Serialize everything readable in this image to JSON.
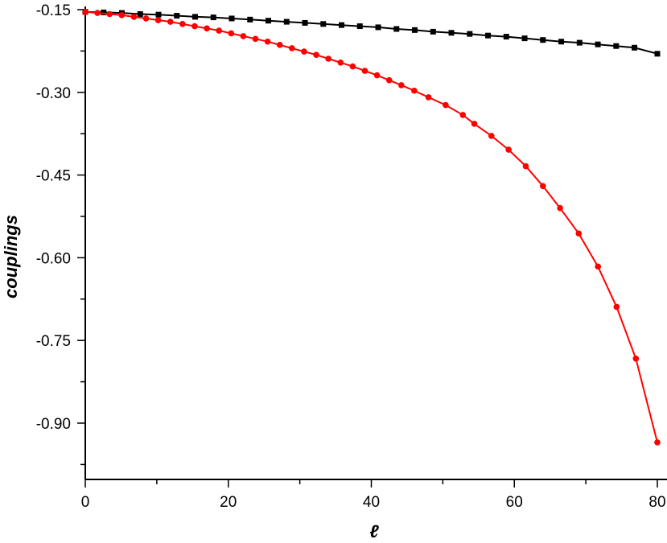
{
  "chart_data": {
    "type": "line",
    "title": "",
    "xlabel": "ℓ",
    "ylabel": "couplings",
    "xlim": [
      0,
      80
    ],
    "ylim": [
      -0.99,
      -0.15
    ],
    "x_ticks": [
      0,
      20,
      40,
      60,
      80
    ],
    "x_tick_labels": [
      "0",
      "20",
      "40",
      "60",
      "80"
    ],
    "y_ticks": [
      -0.15,
      -0.3,
      -0.45,
      -0.6,
      -0.75,
      -0.9
    ],
    "y_tick_labels": [
      "-0.15",
      "-0.30",
      "-0.45",
      "-0.60",
      "-0.75",
      "-0.90"
    ],
    "grid": false,
    "legend": "none",
    "series": [
      {
        "color": "#000000",
        "marker": "square",
        "x": [
          0,
          2.56,
          5.12,
          7.68,
          10.24,
          12.8,
          15.36,
          17.92,
          20.48,
          23.04,
          25.6,
          28.16,
          30.72,
          33.28,
          35.84,
          38.4,
          40.96,
          43.52,
          46.08,
          48.64,
          51.2,
          53.76,
          56.32,
          58.88,
          61.44,
          64,
          66.56,
          69.12,
          71.68,
          74.24,
          76.8,
          80
        ],
        "y": [
          -0.154,
          -0.155,
          -0.156,
          -0.158,
          -0.159,
          -0.161,
          -0.163,
          -0.164,
          -0.166,
          -0.168,
          -0.17,
          -0.172,
          -0.174,
          -0.176,
          -0.178,
          -0.18,
          -0.182,
          -0.185,
          -0.187,
          -0.19,
          -0.192,
          -0.194,
          -0.197,
          -0.199,
          -0.202,
          -0.205,
          -0.208,
          -0.21,
          -0.213,
          -0.216,
          -0.219,
          -0.23
        ]
      },
      {
        "color": "#ff0000",
        "marker": "circle",
        "x": [
          0,
          1.7,
          3.4,
          5.1,
          6.8,
          8.5,
          10.2,
          11.9,
          13.6,
          15.3,
          17,
          18.7,
          20.4,
          22.1,
          23.8,
          25.5,
          27.2,
          28.9,
          30.6,
          32.3,
          34,
          35.7,
          37.4,
          39.1,
          40.8,
          42.5,
          44.2,
          46,
          48,
          50.4,
          52.8,
          54.4,
          56.8,
          59.2,
          61.6,
          64,
          66.4,
          69,
          71.7,
          74.3,
          77,
          80
        ],
        "y": [
          -0.154,
          -0.156,
          -0.158,
          -0.16,
          -0.163,
          -0.166,
          -0.169,
          -0.172,
          -0.176,
          -0.18,
          -0.184,
          -0.188,
          -0.193,
          -0.198,
          -0.203,
          -0.208,
          -0.214,
          -0.22,
          -0.226,
          -0.232,
          -0.239,
          -0.246,
          -0.253,
          -0.261,
          -0.269,
          -0.278,
          -0.287,
          -0.297,
          -0.309,
          -0.323,
          -0.341,
          -0.357,
          -0.379,
          -0.404,
          -0.434,
          -0.47,
          -0.51,
          -0.556,
          -0.616,
          -0.689,
          -0.783,
          -0.935
        ]
      }
    ]
  }
}
